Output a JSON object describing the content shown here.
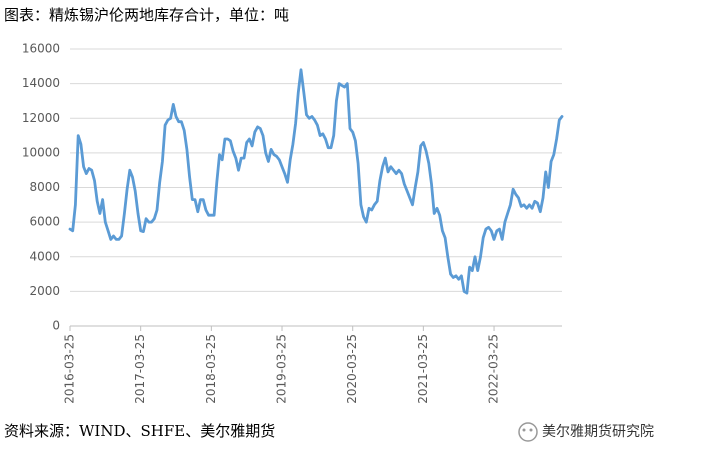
{
  "chart_data": {
    "type": "line",
    "title": "图表：精炼锡沪伦两地库存合计，单位：吨",
    "source": "资料来源：WIND、SHFE、美尔雅期货",
    "watermark": "美尔雅期货研究院",
    "color": "#5b9bd5",
    "ylim": [
      0,
      16000
    ],
    "yticks": [
      0,
      2000,
      4000,
      6000,
      8000,
      10000,
      12000,
      14000,
      16000
    ],
    "grid": true,
    "categories": [
      "2016-03-25",
      null,
      null,
      null,
      null,
      null,
      null,
      null,
      null,
      null,
      null,
      null,
      null,
      null,
      null,
      null,
      null,
      null,
      null,
      null,
      null,
      null,
      null,
      null,
      null,
      null,
      "2017-03-25",
      null,
      null,
      null,
      null,
      null,
      null,
      null,
      null,
      null,
      null,
      null,
      null,
      null,
      null,
      null,
      null,
      null,
      null,
      null,
      null,
      null,
      null,
      null,
      null,
      null,
      "2018-03-25",
      null,
      null,
      null,
      null,
      null,
      null,
      null,
      null,
      null,
      null,
      null,
      null,
      null,
      null,
      null,
      null,
      null,
      null,
      null,
      null,
      null,
      null,
      null,
      null,
      null,
      "2019-03-25",
      null,
      null,
      null,
      null,
      null,
      null,
      null,
      null,
      null,
      null,
      null,
      null,
      null,
      null,
      null,
      null,
      null,
      null,
      null,
      null,
      null,
      null,
      null,
      null,
      null,
      "2020-03-25",
      null,
      null,
      null,
      null,
      null,
      null,
      null,
      null,
      null,
      null,
      null,
      null,
      null,
      null,
      null,
      null,
      null,
      null,
      null,
      null,
      null,
      null,
      null,
      null,
      null,
      "2021-03-25",
      null,
      null,
      null,
      null,
      null,
      null,
      null,
      null,
      null,
      null,
      null,
      null,
      null,
      null,
      null,
      null,
      null,
      null,
      null,
      null,
      null,
      null,
      null,
      null,
      null,
      "2022-03-25",
      null,
      null,
      null,
      null,
      null,
      null,
      null,
      null,
      null,
      null,
      null,
      null,
      null,
      null,
      null,
      null,
      null,
      null,
      null,
      null,
      null,
      null,
      null,
      null,
      null
    ],
    "values": [
      5600,
      5500,
      7000,
      11000,
      10500,
      9200,
      8800,
      9100,
      9000,
      8400,
      7200,
      6500,
      7300,
      6000,
      5500,
      5000,
      5200,
      5000,
      5000,
      5200,
      6500,
      7900,
      9000,
      8600,
      7800,
      6500,
      5500,
      5450,
      6200,
      6000,
      6000,
      6200,
      6700,
      8300,
      9500,
      11600,
      11900,
      12000,
      12800,
      12100,
      11800,
      11800,
      11300,
      10200,
      8600,
      7300,
      7300,
      6600,
      7300,
      7300,
      6700,
      6400,
      6400,
      6400,
      8300,
      9900,
      9600,
      10800,
      10800,
      10700,
      10100,
      9700,
      9000,
      9700,
      9700,
      10600,
      10800,
      10400,
      11200,
      11500,
      11400,
      11000,
      10000,
      9500,
      10200,
      9900,
      9800,
      9600,
      9200,
      8800,
      8300,
      9600,
      10500,
      11700,
      13500,
      14800,
      13500,
      12200,
      12000,
      12100,
      11900,
      11600,
      11000,
      11100,
      10800,
      10300,
      10300,
      11000,
      13000,
      14000,
      13900,
      13800,
      14000,
      11400,
      11200,
      10700,
      9400,
      7000,
      6300,
      6000,
      6800,
      6700,
      7000,
      7200,
      8400,
      9200,
      9700,
      8900,
      9200,
      9000,
      8800,
      9000,
      8800,
      8200,
      7800,
      7400,
      7000,
      8000,
      8900,
      10400,
      10600,
      10100,
      9400,
      8200,
      6500,
      6800,
      6400,
      5500,
      5100,
      4000,
      3000,
      2800,
      2900,
      2700,
      2900,
      2000,
      1900,
      3400,
      3200,
      4000,
      3200,
      4000,
      5100,
      5600,
      5700,
      5500,
      5000,
      5500,
      5600,
      5000,
      6000,
      6500,
      7000,
      7900,
      7600,
      7400,
      6900,
      7000,
      6800,
      7000,
      6800,
      7200,
      7100,
      6600,
      7400,
      8900,
      8000,
      9500,
      9900,
      10800,
      11900,
      12100
    ]
  }
}
